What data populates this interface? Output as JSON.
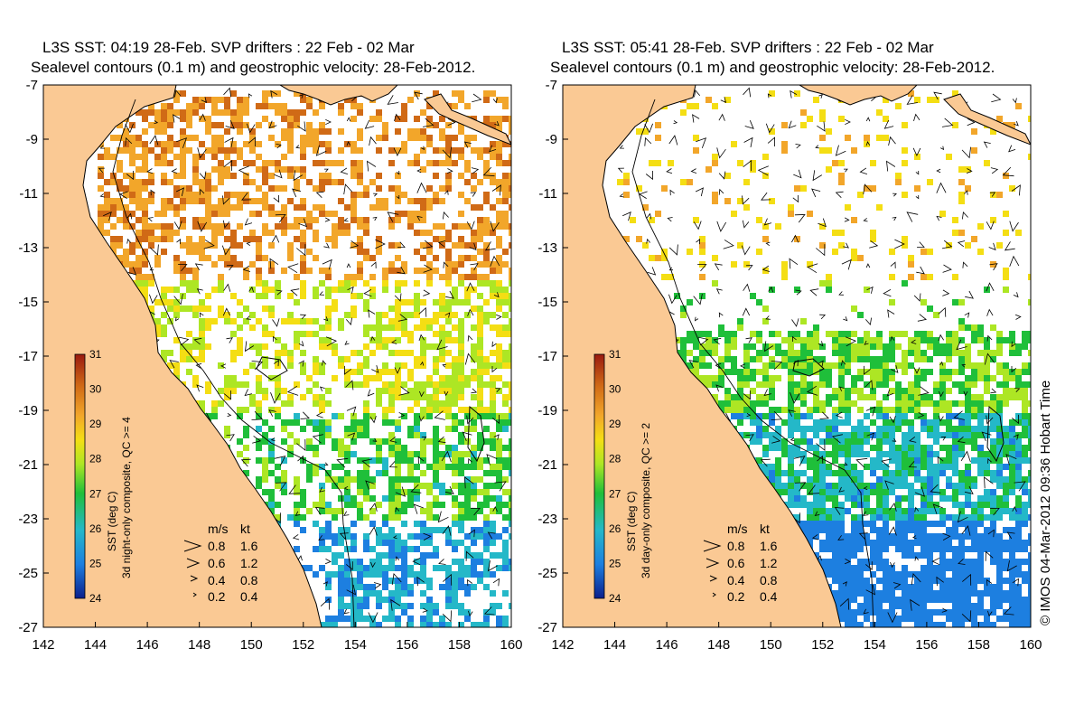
{
  "chart_data": [
    {
      "type": "heatmap",
      "title_line1": "L3S SST: 04:19 28-Feb. SVP drifters : 22 Feb - 02 Mar",
      "title_line2": "Sealevel contours (0.1 m) and geostrophic velocity: 28-Feb-2012.",
      "xlabel": "",
      "ylabel": "",
      "xlim": [
        142,
        160
      ],
      "ylim": [
        -27,
        -7
      ],
      "x_ticks": [
        "142",
        "144",
        "146",
        "148",
        "150",
        "152",
        "154",
        "156",
        "158",
        "160"
      ],
      "y_ticks": [
        "-7",
        "-9",
        "-11",
        "-13",
        "-15",
        "-17",
        "-19",
        "-21",
        "-23",
        "-25",
        "-27"
      ],
      "colorbar": {
        "label": "SST (deg C)",
        "sublabel": "3d night-only composite, QC >= 4",
        "ticks": [
          "31",
          "30",
          "29",
          "28",
          "27",
          "26",
          "25",
          "24"
        ],
        "range": [
          24,
          31
        ]
      },
      "velocity_legend": {
        "header_ms": "m/s",
        "header_kt": "kt",
        "rows": [
          {
            "ms": "0.8",
            "kt": "1.6"
          },
          {
            "ms": "0.6",
            "kt": "1.2"
          },
          {
            "ms": "0.4",
            "kt": "0.8"
          },
          {
            "ms": "0.2",
            "kt": "0.4"
          }
        ]
      }
    },
    {
      "type": "heatmap",
      "title_line1": "L3S SST: 05:41 28-Feb. SVP drifters : 22 Feb - 02 Mar",
      "title_line2": "Sealevel contours (0.1 m) and geostrophic velocity: 28-Feb-2012.",
      "xlabel": "",
      "ylabel": "",
      "xlim": [
        142,
        160
      ],
      "ylim": [
        -27,
        -7
      ],
      "x_ticks": [
        "142",
        "144",
        "146",
        "148",
        "150",
        "152",
        "154",
        "156",
        "158",
        "160"
      ],
      "y_ticks": [
        "-7",
        "-9",
        "-11",
        "-13",
        "-15",
        "-17",
        "-19",
        "-21",
        "-23",
        "-25",
        "-27"
      ],
      "colorbar": {
        "label": "SST (deg C)",
        "sublabel": "3d day-only composite, QC >= 2",
        "ticks": [
          "31",
          "30",
          "29",
          "28",
          "27",
          "26",
          "25",
          "24"
        ],
        "range": [
          24,
          31
        ]
      },
      "velocity_legend": {
        "header_ms": "m/s",
        "header_kt": "kt",
        "rows": [
          {
            "ms": "0.8",
            "kt": "1.6"
          },
          {
            "ms": "0.6",
            "kt": "1.2"
          },
          {
            "ms": "0.4",
            "kt": "0.8"
          },
          {
            "ms": "0.2",
            "kt": "0.4"
          }
        ]
      }
    }
  ],
  "copyright": "© IMOS 04-Mar-2012 09:36 Hobart Time",
  "colors": {
    "land": "#fac994",
    "ocean": "#ffffff",
    "sst_scale": [
      "#0b1f8c",
      "#1d7fe0",
      "#24b8c8",
      "#1fbf3a",
      "#ade624",
      "#f4de14",
      "#f2a62a",
      "#d06a16",
      "#9a1a10"
    ]
  }
}
